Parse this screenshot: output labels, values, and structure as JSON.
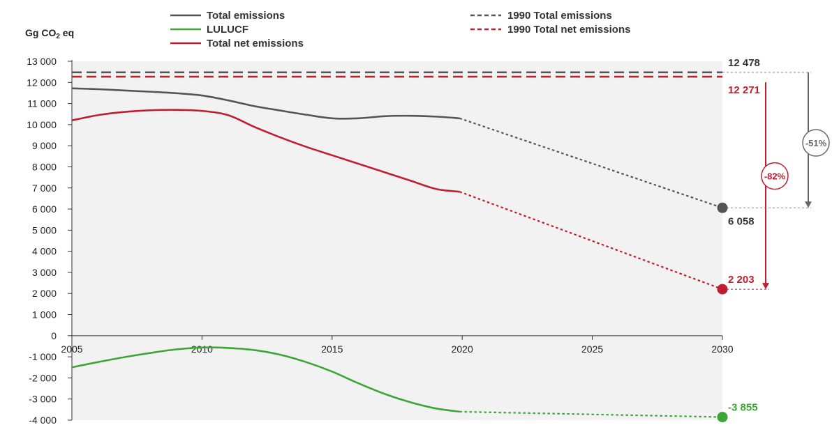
{
  "chart_data": {
    "type": "line",
    "unit_label": {
      "main": "Gg CO",
      "sub": "2",
      "tail": " eq"
    },
    "xlim": [
      2005,
      2030
    ],
    "ylim": [
      -4000,
      13000
    ],
    "x_ticks": [
      "2005",
      "2010",
      "2015",
      "2020",
      "2025",
      "2030"
    ],
    "y_ticks": [
      {
        "v": 13000,
        "label": "13 000"
      },
      {
        "v": 12000,
        "label": "12 000"
      },
      {
        "v": 11000,
        "label": "11 000"
      },
      {
        "v": 10000,
        "label": "10 000"
      },
      {
        "v": 9000,
        "label": "9 000"
      },
      {
        "v": 8000,
        "label": "8 000"
      },
      {
        "v": 7000,
        "label": "7 000"
      },
      {
        "v": 6000,
        "label": "6 000"
      },
      {
        "v": 5000,
        "label": "5 000"
      },
      {
        "v": 4000,
        "label": "4 000"
      },
      {
        "v": 3000,
        "label": "3 000"
      },
      {
        "v": 2000,
        "label": "2 000"
      },
      {
        "v": 1000,
        "label": "1 000"
      },
      {
        "v": 0,
        "label": "0"
      },
      {
        "v": -1000,
        "label": "-1 000"
      },
      {
        "v": -2000,
        "label": "-2 000"
      },
      {
        "v": -3000,
        "label": "-3 000"
      },
      {
        "v": -4000,
        "label": "-4 000"
      }
    ],
    "series": [
      {
        "name": "Total emissions",
        "color": "#555555",
        "style": "solid",
        "x": [
          2005,
          2006,
          2007,
          2008,
          2009,
          2010,
          2011,
          2012,
          2013,
          2014,
          2015,
          2016,
          2017,
          2018,
          2019,
          2019.9
        ],
        "y": [
          11720,
          11680,
          11620,
          11560,
          11490,
          11380,
          11150,
          10880,
          10670,
          10470,
          10300,
          10300,
          10400,
          10420,
          10380,
          10300
        ]
      },
      {
        "name": "LULUCF",
        "color": "#3ca535",
        "style": "solid",
        "x": [
          2005,
          2006,
          2007,
          2008,
          2009,
          2010,
          2011,
          2012,
          2013,
          2014,
          2015,
          2016,
          2017,
          2018,
          2019,
          2019.9
        ],
        "y": [
          -1500,
          -1250,
          -1020,
          -820,
          -650,
          -560,
          -580,
          -680,
          -900,
          -1250,
          -1700,
          -2250,
          -2750,
          -3150,
          -3450,
          -3600
        ]
      },
      {
        "name": "Total net emissions",
        "color": "#c01e2e",
        "style": "solid",
        "x": [
          2005,
          2006,
          2007,
          2008,
          2009,
          2010,
          2011,
          2012,
          2013,
          2014,
          2015,
          2016,
          2017,
          2018,
          2019,
          2019.9
        ],
        "y": [
          10200,
          10450,
          10600,
          10680,
          10700,
          10650,
          10450,
          9900,
          9400,
          8950,
          8550,
          8150,
          7750,
          7350,
          6950,
          6820
        ]
      },
      {
        "name": "Total emissions projection",
        "color": "#555555",
        "style": "dotted",
        "x": [
          2019.9,
          2030
        ],
        "y": [
          10300,
          6058
        ]
      },
      {
        "name": "Total net emissions projection",
        "color": "#c01e2e",
        "style": "dotted",
        "x": [
          2019.9,
          2030
        ],
        "y": [
          6820,
          2203
        ]
      },
      {
        "name": "LULUCF projection",
        "color": "#3ca535",
        "style": "dotted",
        "x": [
          2019.9,
          2030
        ],
        "y": [
          -3600,
          -3855
        ]
      },
      {
        "name": "1990 Total emissions",
        "color": "#555555",
        "style": "dashed",
        "x": [
          2005,
          2030
        ],
        "y": [
          12478,
          12478
        ]
      },
      {
        "name": "1990 Total net emissions",
        "color": "#c01e2e",
        "style": "dashed",
        "x": [
          2005,
          2030
        ],
        "y": [
          12271,
          12271
        ]
      }
    ],
    "legend": {
      "left": [
        {
          "label": "Total emissions",
          "color": "#555555",
          "style": "solid"
        },
        {
          "label": "LULUCF",
          "color": "#3ca535",
          "style": "solid"
        },
        {
          "label": "Total net emissions",
          "color": "#c01e2e",
          "style": "solid"
        }
      ],
      "right": [
        {
          "label": "1990 Total emissions",
          "color": "#555555",
          "style": "dashed"
        },
        {
          "label": "1990 Total net emissions",
          "color": "#c01e2e",
          "style": "dashed"
        }
      ]
    },
    "end_points": [
      {
        "x": 2030,
        "y": 6058,
        "color": "#555555"
      },
      {
        "x": 2030,
        "y": 2203,
        "color": "#c01e2e"
      },
      {
        "x": 2030,
        "y": -3855,
        "color": "#3ca535"
      }
    ],
    "labels": [
      {
        "text": "12 478",
        "value": 12478,
        "color": "#333333",
        "side": "above"
      },
      {
        "text": "12 271",
        "value": 12271,
        "color": "#c01e2e",
        "side": "below"
      },
      {
        "text": "6 058",
        "value": 6058,
        "color": "#333333",
        "side": "below"
      },
      {
        "text": "2 203",
        "value": 2203,
        "color": "#c01e2e",
        "side": "above"
      },
      {
        "text": "-3 855",
        "value": -3855,
        "color": "#3ca535",
        "side": "above"
      }
    ],
    "reductions": [
      {
        "text": "-51%",
        "from": 12478,
        "to": 6058,
        "color": "#666666"
      },
      {
        "text": "-82%",
        "from": 12271,
        "to": 2203,
        "color": "#c01e2e"
      }
    ],
    "colors": {
      "plot_bg": "#f2f2f2",
      "axis": "#333333"
    }
  }
}
